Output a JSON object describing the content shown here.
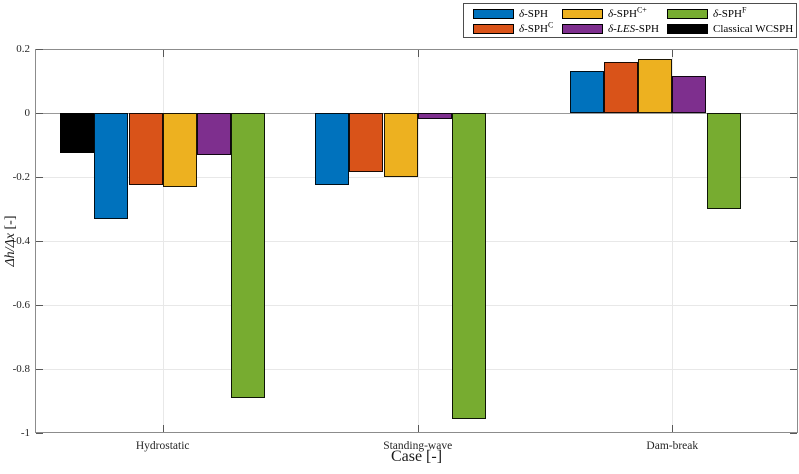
{
  "colors": {
    "background": "#ffffff",
    "axis": "#8c8c8c",
    "grid": "#e8e8e8",
    "zero_line": "#999999",
    "tick": "#595959",
    "text": "#262626",
    "legend_border": "#4d4d4d"
  },
  "chart_data": {
    "type": "bar",
    "title": "",
    "xlabel": "Case [-]",
    "ylabel_text": "Δh/Δx [-]",
    "ylabel_parts": [
      {
        "t": "Δh/Δx",
        "style": "italic"
      },
      {
        "t": " [-]",
        "style": "normal"
      }
    ],
    "categories": [
      "Hydrostatic",
      "Standing-wave",
      "Dam-break"
    ],
    "ylim": [
      -1,
      0.2
    ],
    "yticks": [
      0.2,
      0,
      -0.2,
      -0.4,
      -0.6,
      -0.8,
      -1
    ],
    "ytick_labels": [
      "0.2",
      "0",
      "-0.2",
      "-0.4",
      "-0.6",
      "-0.8",
      "-1"
    ],
    "grid": true,
    "legend_position": "top-right",
    "legend_rows": 2,
    "legend_columns": 3,
    "series": [
      {
        "name": "δ-SPH",
        "color": "#0072BD",
        "label_parts": [
          {
            "t": "δ",
            "style": "italic"
          },
          {
            "t": "-SPH",
            "style": "normal"
          }
        ],
        "values": [
          -0.33,
          -0.225,
          0.13
        ]
      },
      {
        "name": "δ-SPH^C",
        "color": "#D95319",
        "label_parts": [
          {
            "t": "δ",
            "style": "italic"
          },
          {
            "t": "-SPH",
            "style": "normal"
          },
          {
            "t": "C",
            "style": "sup"
          }
        ],
        "values": [
          -0.225,
          -0.185,
          0.16
        ]
      },
      {
        "name": "δ-SPH^C+",
        "color": "#EDB120",
        "label_parts": [
          {
            "t": "δ",
            "style": "italic"
          },
          {
            "t": "-SPH",
            "style": "normal"
          },
          {
            "t": "C+",
            "style": "sup"
          }
        ],
        "values": [
          -0.23,
          -0.2,
          0.17
        ]
      },
      {
        "name": "δ-LES-SPH",
        "color": "#7E2F8E",
        "label_parts": [
          {
            "t": "δ",
            "style": "italic"
          },
          {
            "t": "-",
            "style": "normal"
          },
          {
            "t": "LES",
            "style": "italic"
          },
          {
            "t": "-SPH",
            "style": "normal"
          }
        ],
        "values": [
          -0.13,
          -0.02,
          0.115
        ]
      },
      {
        "name": "δ-SPH^F",
        "color": "#77AC30",
        "label_parts": [
          {
            "t": "δ",
            "style": "italic"
          },
          {
            "t": "-SPH",
            "style": "normal"
          },
          {
            "t": "F",
            "style": "sup"
          }
        ],
        "values": [
          -0.89,
          -0.955,
          -0.3
        ]
      },
      {
        "name": "Classical WCSPH",
        "color": "#000000",
        "label_parts": [
          {
            "t": "Classical WCSPH",
            "style": "normal"
          }
        ],
        "values": [
          -0.125,
          null,
          null
        ]
      }
    ],
    "slot_assignment": [
      [
        5,
        0,
        1,
        2,
        3,
        4
      ],
      [
        0,
        1,
        2,
        3,
        4,
        5
      ],
      [
        0,
        1,
        2,
        3,
        4,
        5
      ]
    ]
  }
}
